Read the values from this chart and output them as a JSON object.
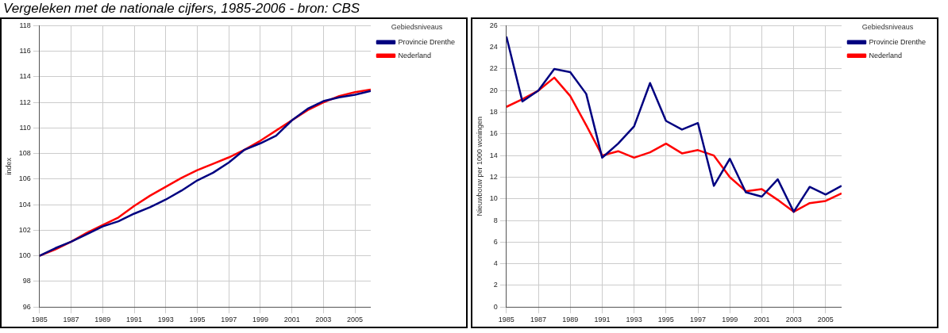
{
  "chart_data": [
    {
      "type": "line",
      "title": "Vergeleken met de nationale cijfers, 1985-2006 - bron: CBS",
      "ylabel": "index",
      "legend_title": "Gebiedsniveaus",
      "legend": "top right",
      "grid": true,
      "x": [
        1985,
        1986,
        1987,
        1988,
        1989,
        1990,
        1991,
        1992,
        1993,
        1994,
        1995,
        1996,
        1997,
        1998,
        1999,
        2000,
        2001,
        2002,
        2003,
        2004,
        2005,
        2006
      ],
      "xlim": [
        1985,
        2006
      ],
      "xticks": [
        1985,
        1987,
        1989,
        1991,
        1993,
        1995,
        1997,
        1999,
        2001,
        2003,
        2005
      ],
      "ylim": [
        96,
        118
      ],
      "yticks": [
        96,
        98,
        100,
        102,
        104,
        106,
        108,
        110,
        112,
        114,
        116,
        118
      ],
      "series": [
        {
          "name": "Provincie Drenthe",
          "color": "#000080",
          "values": [
            100,
            100.6,
            101.1,
            101.7,
            102.3,
            102.7,
            103.3,
            103.8,
            104.4,
            105.1,
            105.9,
            106.5,
            107.3,
            108.3,
            108.8,
            109.4,
            110.6,
            111.5,
            112.1,
            112.4,
            112.6,
            112.9
          ]
        },
        {
          "name": "Nederland",
          "color": "#ff0000",
          "values": [
            100,
            100.5,
            101.1,
            101.8,
            102.4,
            103.0,
            103.9,
            104.7,
            105.4,
            106.1,
            106.7,
            107.2,
            107.7,
            108.3,
            109.0,
            109.8,
            110.6,
            111.4,
            112.0,
            112.5,
            112.8,
            113.0
          ]
        }
      ]
    },
    {
      "type": "line",
      "ylabel": "Nieuwbouw per 1000 woningen",
      "legend_title": "Gebiedsniveaus",
      "legend": "top right",
      "grid": true,
      "x": [
        1985,
        1986,
        1987,
        1988,
        1989,
        1990,
        1991,
        1992,
        1993,
        1994,
        1995,
        1996,
        1997,
        1998,
        1999,
        2000,
        2001,
        2002,
        2003,
        2004,
        2005,
        2006
      ],
      "xlim": [
        1985,
        2006
      ],
      "xticks": [
        1985,
        1987,
        1989,
        1991,
        1993,
        1995,
        1997,
        1999,
        2001,
        2003,
        2005
      ],
      "ylim": [
        0,
        26
      ],
      "yticks": [
        0,
        2,
        4,
        6,
        8,
        10,
        12,
        14,
        16,
        18,
        20,
        22,
        24,
        26
      ],
      "series": [
        {
          "name": "Provincie Drenthe",
          "color": "#000080",
          "values": [
            25.0,
            19.0,
            20.0,
            22.0,
            21.7,
            19.7,
            13.8,
            15.1,
            16.7,
            20.7,
            17.2,
            16.4,
            17.0,
            11.2,
            13.7,
            10.6,
            10.2,
            11.8,
            8.8,
            11.1,
            10.4,
            11.2
          ]
        },
        {
          "name": "Nederland",
          "color": "#ff0000",
          "values": [
            18.5,
            19.2,
            20.0,
            21.2,
            19.5,
            16.8,
            14.0,
            14.4,
            13.8,
            14.3,
            15.1,
            14.2,
            14.5,
            14.0,
            12.0,
            10.7,
            10.9,
            9.9,
            8.8,
            9.6,
            9.8,
            10.5
          ]
        }
      ]
    }
  ]
}
